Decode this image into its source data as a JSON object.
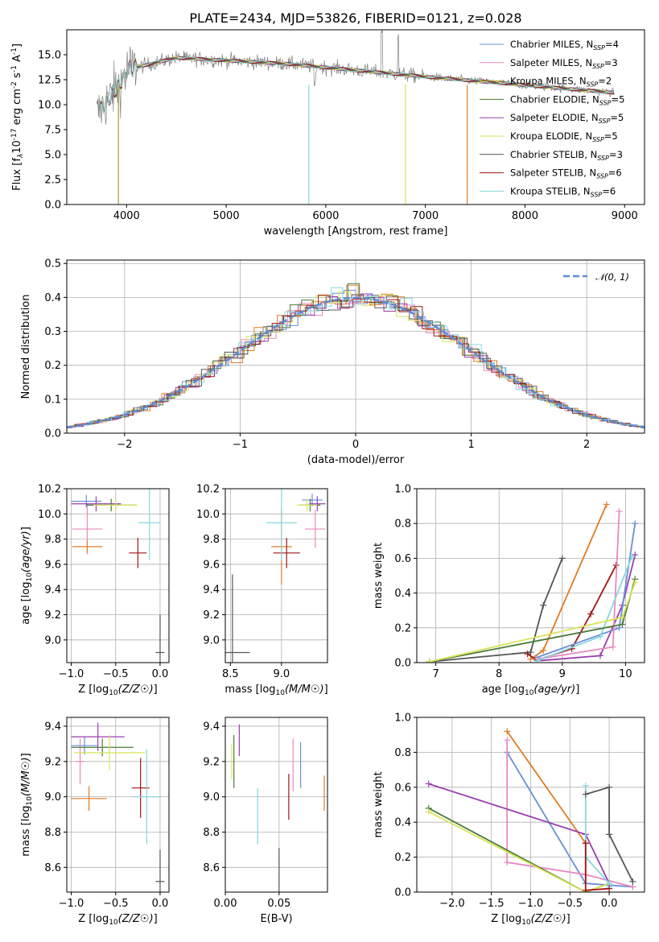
{
  "figure_title": "PLATE=2434, MJD=53826, FIBERID=0121, z=0.028",
  "colors": {
    "Chabrier MILES": "#6a8fd6",
    "Salpeter MILES": "#e889c0",
    "Kroupa MILES": "#a89a2a",
    "Chabrier ELODIE": "#4a7a3a",
    "Salpeter ELODIE": "#9a3fb0",
    "Kroupa ELODIE": "#d9e35a",
    "Chabrier STELIB": "#555555",
    "Salpeter STELIB": "#a01515",
    "Kroupa STELIB": "#86d8dc",
    "orange": "#e07b25",
    "gaussian": "#5b8ad8",
    "data": "#808080"
  },
  "chart_data": [
    {
      "id": "spectrum",
      "type": "line",
      "xlabel": "wavelength [Angstrom, rest frame]",
      "ylabel": "Flux [f_λ10^-17 erg cm^-2 s^-1 A^-1]",
      "xlim": [
        3400,
        9200
      ],
      "ylim": [
        0,
        17.5
      ],
      "xticks": [
        4000,
        5000,
        6000,
        7000,
        8000,
        9000
      ],
      "yticks": [
        0.0,
        2.5,
        5.0,
        7.5,
        10.0,
        12.5,
        15.0
      ],
      "x_range": [
        3700,
        8900
      ],
      "legend": [
        {
          "name": "Chabrier MILES",
          "nssp": "4"
        },
        {
          "name": "Salpeter MILES",
          "nssp": "3"
        },
        {
          "name": "Kroupa MILES",
          "nssp": "2"
        },
        {
          "name": "Chabrier ELODIE",
          "nssp": "5"
        },
        {
          "name": "Salpeter ELODIE",
          "nssp": "5"
        },
        {
          "name": "Kroupa ELODIE",
          "nssp": "5"
        },
        {
          "name": "Chabrier STELIB",
          "nssp": "3"
        },
        {
          "name": "Salpeter STELIB",
          "nssp": "6"
        },
        {
          "name": "Kroupa STELIB",
          "nssp": "6"
        }
      ],
      "legend_placement": "upper right"
    },
    {
      "id": "residuals",
      "type": "histogram",
      "xlabel": "(data-model)/error",
      "ylabel": "Normed distribution",
      "xlim": [
        -2.5,
        2.5
      ],
      "ylim": [
        0,
        0.51
      ],
      "xticks": [
        -2,
        -1,
        0,
        1,
        2
      ],
      "yticks": [
        0.0,
        0.1,
        0.2,
        0.3,
        0.4,
        0.5
      ],
      "grid": true,
      "legend": "𝒩(0, 1)",
      "legend_placement": "upper right"
    },
    {
      "id": "age_vs_Z",
      "type": "errorbar",
      "xlabel": "Z [log10(Z/Z☉)]",
      "ylabel": "age  [log10(age/yr)]",
      "xlim": [
        -1.05,
        0.1
      ],
      "ylim": [
        8.82,
        10.2
      ],
      "xticks": [
        -1.0,
        -0.5,
        0.0
      ],
      "yticks": [
        9.0,
        9.2,
        9.4,
        9.6,
        9.8,
        10.0,
        10.2
      ],
      "grid": true,
      "points": [
        {
          "model": "Chabrier MILES",
          "x": -0.83,
          "xerr": 0.17,
          "y": 10.1,
          "yerr": 0.05
        },
        {
          "model": "Salpeter MILES",
          "x": -0.82,
          "xerr": 0.17,
          "y": 9.88,
          "yerr": 0.2
        },
        {
          "model": "orange",
          "x": -0.82,
          "xerr": 0.17,
          "y": 9.74,
          "yerr": 0.05
        },
        {
          "model": "Chabrier ELODIE",
          "x": -0.55,
          "xerr": 0.28,
          "y": 10.07,
          "yerr": 0.05
        },
        {
          "model": "Salpeter ELODIE",
          "x": -0.72,
          "xerr": 0.28,
          "y": 10.08,
          "yerr": 0.06
        },
        {
          "model": "Kroupa ELODIE",
          "x": -0.5,
          "xerr": 0.25,
          "y": 10.07,
          "yerr": 0.05
        },
        {
          "model": "Salpeter STELIB",
          "x": -0.25,
          "xerr": 0.1,
          "y": 9.69,
          "yerr": 0.12
        },
        {
          "model": "Kroupa STELIB",
          "x": -0.12,
          "xerr": 0.12,
          "y": 9.93,
          "yerr": 0.3
        },
        {
          "model": "Chabrier STELIB",
          "x": 0.0,
          "xerr": 0.05,
          "y": 8.9,
          "yerr": 0.3
        }
      ]
    },
    {
      "id": "age_vs_mass",
      "type": "errorbar",
      "xlabel": "mass [log10(M/M☉)]",
      "ylabel": "",
      "xlim": [
        8.45,
        9.45
      ],
      "ylim": [
        8.82,
        10.2
      ],
      "xticks": [
        8.5,
        9.0
      ],
      "yticks": [
        9.0,
        9.2,
        9.4,
        9.6,
        9.8,
        10.0,
        10.2
      ],
      "grid": true,
      "points": [
        {
          "model": "Chabrier MILES",
          "x": 9.3,
          "xerr": 0.1,
          "y": 10.11,
          "yerr": 0.05
        },
        {
          "model": "Salpeter MILES",
          "x": 9.33,
          "xerr": 0.1,
          "y": 9.88,
          "yerr": 0.15
        },
        {
          "model": "orange",
          "x": 9.0,
          "xerr": 0.1,
          "y": 9.74,
          "yerr": 0.3
        },
        {
          "model": "Chabrier ELODIE",
          "x": 9.28,
          "xerr": 0.1,
          "y": 10.07,
          "yerr": 0.05
        },
        {
          "model": "Salpeter ELODIE",
          "x": 9.35,
          "xerr": 0.08,
          "y": 10.08,
          "yerr": 0.06
        },
        {
          "model": "Kroupa ELODIE",
          "x": 9.25,
          "xerr": 0.1,
          "y": 10.07,
          "yerr": 0.05
        },
        {
          "model": "Salpeter STELIB",
          "x": 9.05,
          "xerr": 0.13,
          "y": 9.69,
          "yerr": 0.12
        },
        {
          "model": "Kroupa STELIB",
          "x": 9.0,
          "xerr": 0.15,
          "y": 9.93,
          "yerr": 0.3
        },
        {
          "model": "Chabrier STELIB",
          "x": 8.52,
          "xerr": 0.17,
          "y": 8.9,
          "yerr": 0.62
        }
      ]
    },
    {
      "id": "weight_vs_age",
      "type": "line",
      "xlabel": "age  [log10(age/yr)]",
      "ylabel": "mass weight",
      "xlim": [
        6.7,
        10.3
      ],
      "ylim": [
        0,
        1.0
      ],
      "xticks": [
        7,
        8,
        9,
        10
      ],
      "yticks": [
        0.0,
        0.2,
        0.4,
        0.6,
        0.8,
        1.0
      ],
      "grid": true,
      "series": [
        {
          "model": "Chabrier STELIB",
          "x": [
            6.9,
            8.5,
            8.7,
            9.0
          ],
          "y": [
            0.005,
            0.06,
            0.33,
            0.6
          ]
        },
        {
          "model": "orange",
          "x": [
            8.5,
            8.7,
            9.7
          ],
          "y": [
            0.02,
            0.07,
            0.91
          ]
        },
        {
          "model": "Salpeter STELIB",
          "x": [
            8.45,
            8.6,
            9.15,
            9.45,
            9.85
          ],
          "y": [
            0.05,
            0.015,
            0.08,
            0.28,
            0.56
          ]
        },
        {
          "model": "Salpeter ELODIE",
          "x": [
            8.6,
            9.6,
            9.95,
            10.15
          ],
          "y": [
            0.01,
            0.04,
            0.33,
            0.62
          ]
        },
        {
          "model": "Chabrier MILES",
          "x": [
            8.6,
            9.9,
            10.15
          ],
          "y": [
            0.03,
            0.2,
            0.8
          ]
        },
        {
          "model": "Salpeter MILES",
          "x": [
            8.6,
            9.8,
            9.9
          ],
          "y": [
            0.02,
            0.09,
            0.87
          ]
        },
        {
          "model": "Kroupa STELIB",
          "x": [
            8.6,
            9.6,
            10.1
          ],
          "y": [
            0.01,
            0.15,
            0.61
          ]
        },
        {
          "model": "Chabrier ELODIE",
          "x": [
            6.9,
            9.95,
            10.15
          ],
          "y": [
            0.005,
            0.22,
            0.48
          ]
        },
        {
          "model": "Kroupa ELODIE",
          "x": [
            6.9,
            9.95,
            10.15
          ],
          "y": [
            0.005,
            0.26,
            0.46
          ]
        }
      ]
    },
    {
      "id": "mass_vs_Z",
      "type": "errorbar",
      "xlabel": "Z [log10(Z/Z☉)]",
      "ylabel": "mass [log10(M/M☉)]",
      "xlim": [
        -1.05,
        0.1
      ],
      "ylim": [
        8.46,
        9.45
      ],
      "xticks": [
        -1.0,
        -0.5,
        0.0
      ],
      "yticks": [
        8.6,
        8.8,
        9.0,
        9.2,
        9.4
      ],
      "grid": true,
      "points": [
        {
          "model": "Chabrier MILES",
          "x": -0.85,
          "xerr": 0.15,
          "y": 9.29,
          "yerr": 0.05
        },
        {
          "model": "Salpeter MILES",
          "x": -0.9,
          "xerr": 0.05,
          "y": 9.2,
          "yerr": 0.13
        },
        {
          "model": "orange",
          "x": -0.8,
          "xerr": 0.2,
          "y": 8.99,
          "yerr": 0.07
        },
        {
          "model": "Chabrier ELODIE",
          "x": -0.65,
          "xerr": 0.35,
          "y": 9.28,
          "yerr": 0.05
        },
        {
          "model": "Salpeter ELODIE",
          "x": -0.7,
          "xerr": 0.3,
          "y": 9.34,
          "yerr": 0.08
        },
        {
          "model": "Kroupa ELODIE",
          "x": -0.57,
          "xerr": 0.4,
          "y": 9.25,
          "yerr": 0.1
        },
        {
          "model": "Salpeter STELIB",
          "x": -0.22,
          "xerr": 0.1,
          "y": 9.05,
          "yerr": 0.17
        },
        {
          "model": "Kroupa STELIB",
          "x": -0.15,
          "xerr": 0.15,
          "y": 9.0,
          "yerr": 0.27
        },
        {
          "model": "Chabrier STELIB",
          "x": 0.0,
          "xerr": 0.05,
          "y": 8.52,
          "yerr": 0.18
        }
      ]
    },
    {
      "id": "mass_vs_EBV",
      "type": "errorbar",
      "xlabel": "E(B-V)",
      "ylabel": "",
      "xlim": [
        0.0,
        0.095
      ],
      "ylim": [
        8.46,
        9.45
      ],
      "xticks": [
        0.0,
        0.05
      ],
      "yticks": [
        8.6,
        8.8,
        9.0,
        9.2,
        9.4
      ],
      "grid": true,
      "points": [
        {
          "model": "Chabrier ELODIE",
          "x": 0.008,
          "xerr": 0,
          "y": 9.2,
          "yerr": 0.15
        },
        {
          "model": "Kroupa ELODIE",
          "x": 0.006,
          "xerr": 0,
          "y": 9.2,
          "yerr": 0.1
        },
        {
          "model": "Salpeter ELODIE",
          "x": 0.013,
          "xerr": 0,
          "y": 9.32,
          "yerr": 0.09
        },
        {
          "model": "Kroupa STELIB",
          "x": 0.03,
          "xerr": 0,
          "y": 8.89,
          "yerr": 0.16
        },
        {
          "model": "Chabrier STELIB",
          "x": 0.05,
          "xerr": 0,
          "y": 8.58,
          "yerr": 0.13
        },
        {
          "model": "Salpeter STELIB",
          "x": 0.059,
          "xerr": 0,
          "y": 9.0,
          "yerr": 0.13
        },
        {
          "model": "Salpeter MILES",
          "x": 0.063,
          "xerr": 0,
          "y": 9.18,
          "yerr": 0.15
        },
        {
          "model": "Chabrier MILES",
          "x": 0.07,
          "xerr": 0,
          "y": 9.18,
          "yerr": 0.13
        },
        {
          "model": "orange",
          "x": 0.092,
          "xerr": 0,
          "y": 9.02,
          "yerr": 0.1
        }
      ]
    },
    {
      "id": "weight_vs_Z",
      "type": "line",
      "xlabel": "Z [log10(Z/Z☉)]",
      "ylabel": "mass weight",
      "xlim": [
        -2.45,
        0.45
      ],
      "ylim": [
        0,
        1.0
      ],
      "xticks": [
        -2.0,
        -1.5,
        -1.0,
        -0.5,
        0.0
      ],
      "yticks": [
        0.0,
        0.2,
        0.4,
        0.6,
        0.8,
        1.0
      ],
      "grid": true,
      "series": [
        {
          "model": "orange",
          "x": [
            -1.3,
            -0.3,
            -0.3
          ],
          "y": [
            0.92,
            0.28,
            0.05
          ]
        },
        {
          "model": "Chabrier MILES",
          "x": [
            -1.3,
            -0.3,
            0.3
          ],
          "y": [
            0.8,
            0.05,
            0.03
          ]
        },
        {
          "model": "Salpeter MILES",
          "x": [
            -1.3,
            -1.3,
            -0.3,
            0.3
          ],
          "y": [
            0.87,
            0.17,
            0.1,
            0.03
          ]
        },
        {
          "model": "Salpeter ELODIE",
          "x": [
            -2.3,
            -0.3,
            0.0
          ],
          "y": [
            0.62,
            0.33,
            0.05
          ]
        },
        {
          "model": "Chabrier ELODIE",
          "x": [
            -2.3,
            -0.3,
            0.0
          ],
          "y": [
            0.48,
            0.0,
            0.05
          ]
        },
        {
          "model": "Kroupa ELODIE",
          "x": [
            -2.3,
            -0.3,
            0.0
          ],
          "y": [
            0.46,
            0.0,
            0.05
          ]
        },
        {
          "model": "Kroupa STELIB",
          "x": [
            -0.3,
            -0.3,
            0.0,
            0.0
          ],
          "y": [
            0.61,
            0.2,
            0.05,
            0.03
          ]
        },
        {
          "model": "Chabrier STELIB",
          "x": [
            -0.3,
            0.0,
            0.0,
            0.3
          ],
          "y": [
            0.56,
            0.6,
            0.33,
            0.06
          ]
        },
        {
          "model": "Salpeter STELIB",
          "x": [
            -0.3,
            -0.3,
            0.0
          ],
          "y": [
            0.28,
            0.01,
            0.02
          ]
        }
      ]
    }
  ]
}
